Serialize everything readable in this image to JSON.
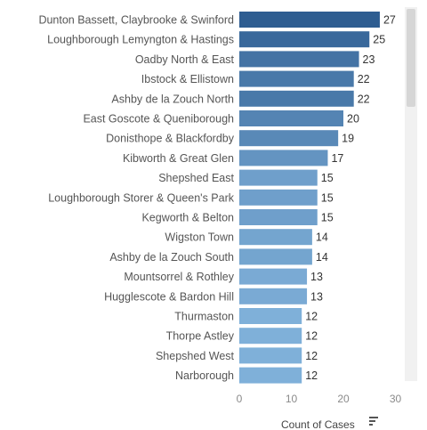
{
  "chart_data": {
    "type": "bar",
    "orientation": "horizontal",
    "categories": [
      "Dunton Bassett, Claybrooke & Swinford",
      "Loughborough Lemyngton & Hastings",
      "Oadby North & East",
      "Ibstock & Ellistown",
      "Ashby de la Zouch North",
      "East Goscote & Queniborough",
      "Donisthope & Blackfordby",
      "Kibworth & Great Glen",
      "Shepshed East",
      "Loughborough Storer & Queen's Park",
      "Kegworth & Belton",
      "Wigston Town",
      "Ashby de la Zouch South",
      "Mountsorrel & Rothley",
      "Hugglescote & Bardon Hill",
      "Thurmaston",
      "Thorpe Astley",
      "Shepshed West",
      "Narborough"
    ],
    "values": [
      27,
      25,
      23,
      22,
      22,
      20,
      19,
      17,
      15,
      15,
      15,
      14,
      14,
      13,
      13,
      12,
      12,
      12,
      12
    ],
    "xlabel": "Count of Cases",
    "ticks": [
      0,
      10,
      20,
      30
    ],
    "xlim": [
      0,
      30
    ],
    "grid": false,
    "bar_color_dark": "#2e5d91",
    "bar_color_light": "#7fb0d9"
  },
  "sort_icon": "sort-descending-icon"
}
